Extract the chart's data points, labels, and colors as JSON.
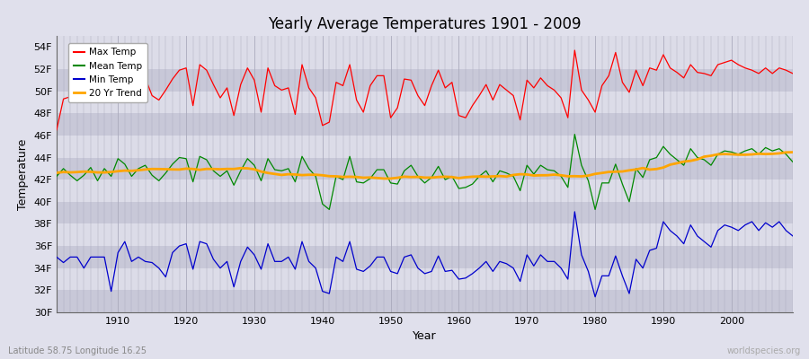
{
  "title": "Yearly Average Temperatures 1901 - 2009",
  "xlabel": "Year",
  "ylabel": "Temperature",
  "subtitle_lat": "Latitude 58.75 Longitude 16.25",
  "watermark": "worldspecies.org",
  "years": [
    1901,
    1902,
    1903,
    1904,
    1905,
    1906,
    1907,
    1908,
    1909,
    1910,
    1911,
    1912,
    1913,
    1914,
    1915,
    1916,
    1917,
    1918,
    1919,
    1920,
    1921,
    1922,
    1923,
    1924,
    1925,
    1926,
    1927,
    1928,
    1929,
    1930,
    1931,
    1932,
    1933,
    1934,
    1935,
    1936,
    1937,
    1938,
    1939,
    1940,
    1941,
    1942,
    1943,
    1944,
    1945,
    1946,
    1947,
    1948,
    1949,
    1950,
    1951,
    1952,
    1953,
    1954,
    1955,
    1956,
    1957,
    1958,
    1959,
    1960,
    1961,
    1962,
    1963,
    1964,
    1965,
    1966,
    1967,
    1968,
    1969,
    1970,
    1971,
    1972,
    1973,
    1974,
    1975,
    1976,
    1977,
    1978,
    1979,
    1980,
    1981,
    1982,
    1983,
    1984,
    1985,
    1986,
    1987,
    1988,
    1989,
    1990,
    1991,
    1992,
    1993,
    1994,
    1995,
    1996,
    1997,
    1998,
    1999,
    2000,
    2001,
    2002,
    2003,
    2004,
    2005,
    2006,
    2007,
    2008,
    2009
  ],
  "max_temp": [
    46.5,
    49.3,
    49.5,
    49.1,
    49.3,
    49.6,
    49.4,
    49.8,
    49.0,
    52.3,
    51.2,
    49.4,
    50.1,
    51.2,
    49.6,
    49.2,
    50.1,
    51.1,
    51.9,
    52.1,
    48.7,
    52.4,
    51.9,
    50.6,
    49.4,
    50.3,
    47.8,
    50.6,
    52.1,
    51.0,
    48.1,
    52.1,
    50.5,
    50.1,
    50.3,
    47.9,
    52.4,
    50.3,
    49.4,
    46.9,
    47.2,
    50.8,
    50.5,
    52.4,
    49.2,
    48.1,
    50.5,
    51.4,
    51.4,
    47.6,
    48.5,
    51.1,
    51.0,
    49.6,
    48.7,
    50.5,
    51.9,
    50.3,
    50.8,
    47.8,
    47.6,
    48.7,
    49.6,
    50.6,
    49.2,
    50.6,
    50.1,
    49.6,
    47.4,
    51.0,
    50.3,
    51.2,
    50.5,
    50.1,
    49.4,
    47.6,
    53.7,
    50.1,
    49.2,
    48.1,
    50.5,
    51.4,
    53.5,
    50.8,
    49.9,
    51.9,
    50.5,
    52.1,
    51.9,
    53.3,
    52.1,
    51.7,
    51.2,
    52.4,
    51.7,
    51.6,
    51.4,
    52.4,
    52.6,
    52.8,
    52.4,
    52.1,
    51.9,
    51.6,
    52.1,
    51.6,
    52.1,
    51.9,
    51.6
  ],
  "mean_temp": [
    42.3,
    43.0,
    42.4,
    41.9,
    42.4,
    43.1,
    41.9,
    43.0,
    42.3,
    43.9,
    43.4,
    42.3,
    43.0,
    43.3,
    42.4,
    41.9,
    42.6,
    43.4,
    44.0,
    43.9,
    41.8,
    44.1,
    43.8,
    42.8,
    42.3,
    42.8,
    41.5,
    42.8,
    43.9,
    43.3,
    41.9,
    43.9,
    42.9,
    42.8,
    43.0,
    41.8,
    44.1,
    43.0,
    42.3,
    39.8,
    39.3,
    42.3,
    42.0,
    44.1,
    41.8,
    41.7,
    42.1,
    42.9,
    42.9,
    41.7,
    41.6,
    42.8,
    43.3,
    42.3,
    41.7,
    42.2,
    43.2,
    42.0,
    42.3,
    41.2,
    41.3,
    41.6,
    42.3,
    42.8,
    41.8,
    42.8,
    42.6,
    42.3,
    41.0,
    43.3,
    42.5,
    43.3,
    42.9,
    42.8,
    42.3,
    41.3,
    46.1,
    43.3,
    41.9,
    39.3,
    41.7,
    41.7,
    43.4,
    41.6,
    40.0,
    43.0,
    42.2,
    43.8,
    44.0,
    45.0,
    44.3,
    43.8,
    43.3,
    44.8,
    44.0,
    43.8,
    43.3,
    44.3,
    44.6,
    44.5,
    44.3,
    44.6,
    44.8,
    44.3,
    44.9,
    44.6,
    44.8,
    44.3,
    43.6
  ],
  "min_temp": [
    35.0,
    34.5,
    35.0,
    35.0,
    34.0,
    35.0,
    35.0,
    35.0,
    31.9,
    35.4,
    36.4,
    34.6,
    35.0,
    34.6,
    34.5,
    34.0,
    33.2,
    35.4,
    36.0,
    36.2,
    33.9,
    36.4,
    36.2,
    34.8,
    34.0,
    34.6,
    32.3,
    34.6,
    35.9,
    35.2,
    33.9,
    36.2,
    34.6,
    34.6,
    35.0,
    33.9,
    36.4,
    34.6,
    34.0,
    31.9,
    31.7,
    35.0,
    34.6,
    36.4,
    33.9,
    33.7,
    34.2,
    35.0,
    35.0,
    33.7,
    33.5,
    35.0,
    35.2,
    34.0,
    33.5,
    33.7,
    35.1,
    33.7,
    33.8,
    33.0,
    33.1,
    33.5,
    34.0,
    34.6,
    33.7,
    34.6,
    34.4,
    34.0,
    32.8,
    35.2,
    34.2,
    35.2,
    34.6,
    34.6,
    34.0,
    33.0,
    39.1,
    35.2,
    33.7,
    31.4,
    33.3,
    33.3,
    35.1,
    33.3,
    31.7,
    34.8,
    34.0,
    35.6,
    35.8,
    38.2,
    37.4,
    36.9,
    36.2,
    37.9,
    36.9,
    36.4,
    35.9,
    37.4,
    37.9,
    37.7,
    37.4,
    37.9,
    38.2,
    37.4,
    38.1,
    37.7,
    38.2,
    37.4,
    36.9
  ],
  "trend_color": "#FFA500",
  "max_color": "#FF0000",
  "mean_color": "#008800",
  "min_color": "#0000CC",
  "ylim_min": 30,
  "ylim_max": 55,
  "yticks": [
    30,
    32,
    34,
    36,
    38,
    40,
    42,
    44,
    46,
    48,
    50,
    52,
    54
  ],
  "xticks": [
    1910,
    1920,
    1930,
    1940,
    1950,
    1960,
    1970,
    1980,
    1990,
    2000
  ],
  "band_light": "#DCDCE8",
  "band_dark": "#C8C8D8",
  "fig_bg": "#E0E0EC"
}
